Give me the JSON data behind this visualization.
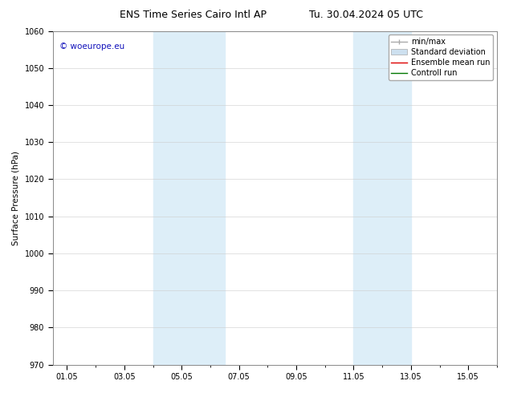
{
  "title_left": "ENS Time Series Cairo Intl AP",
  "title_right": "Tu. 30.04.2024 05 UTC",
  "ylabel": "Surface Pressure (hPa)",
  "ylim": [
    970,
    1060
  ],
  "yticks": [
    970,
    980,
    990,
    1000,
    1010,
    1020,
    1030,
    1040,
    1050,
    1060
  ],
  "xtick_labels": [
    "01.05",
    "03.05",
    "05.05",
    "07.05",
    "09.05",
    "11.05",
    "13.05",
    "15.05"
  ],
  "xtick_positions": [
    0,
    2,
    4,
    6,
    8,
    10,
    12,
    14
  ],
  "xlim": [
    -0.5,
    15.0
  ],
  "shaded_bands": [
    {
      "x_start": 3.0,
      "x_end": 5.5,
      "color": "#ddeef8"
    },
    {
      "x_start": 10.0,
      "x_end": 12.0,
      "color": "#ddeef8"
    }
  ],
  "watermark_text": "© woeurope.eu",
  "watermark_color": "#1111bb",
  "watermark_fontsize": 7.5,
  "legend_entries": [
    {
      "label": "min/max",
      "color": "#aaaaaa",
      "lw": 1.0
    },
    {
      "label": "Standard deviation",
      "color": "#cde0ef",
      "lw": 6
    },
    {
      "label": "Ensemble mean run",
      "color": "#dd0000",
      "lw": 1.0
    },
    {
      "label": "Controll run",
      "color": "#007700",
      "lw": 1.0
    }
  ],
  "bg_color": "#ffffff",
  "grid_color": "#cccccc",
  "title_fontsize": 9,
  "tick_fontsize": 7,
  "ylabel_fontsize": 7.5,
  "legend_fontsize": 7
}
